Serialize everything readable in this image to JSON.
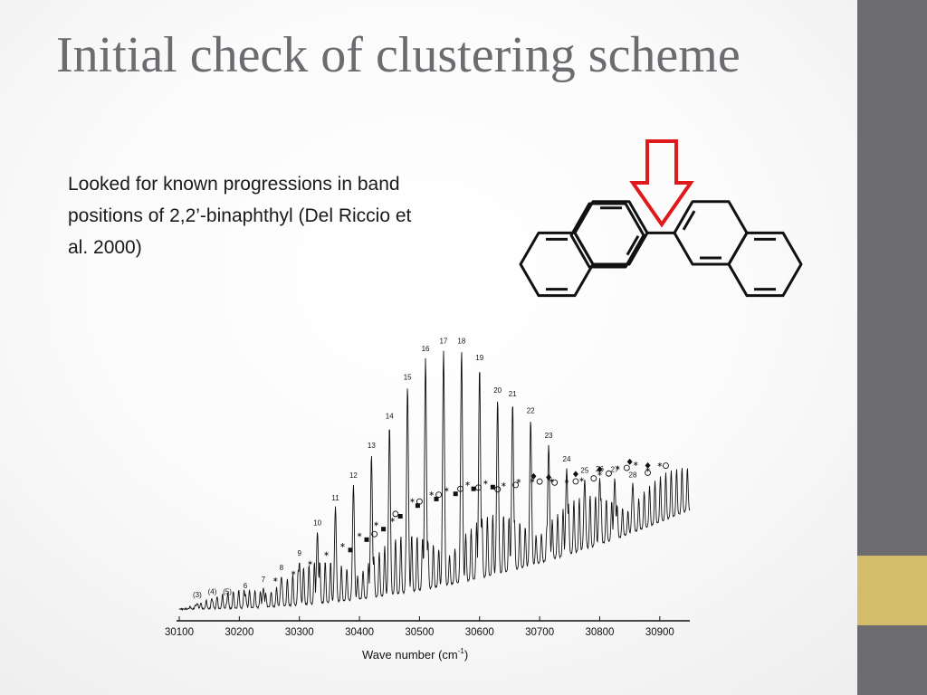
{
  "slide": {
    "title": "Initial check of clustering scheme",
    "body": "Looked for known progressions in band positions of 2,2’-binaphthyl (Del Riccio et al. 2000)",
    "colors": {
      "title": "#6b6b70",
      "sidebar": "#6c6b70",
      "accent": "#d4bd6a",
      "arrow": "#e0191c"
    }
  },
  "figure": {
    "molecule": {
      "arrow_icon": "down-arrow-icon"
    },
    "xlabel": "Wave number",
    "xlabel_unit": "(cm",
    "xlabel_exp": "-1",
    "xlabel_close": ")"
  },
  "chart_data": {
    "type": "line",
    "title": "",
    "xlabel": "Wave number (cm-1)",
    "ylabel": "",
    "xlim": [
      30100,
      30950
    ],
    "x_ticks": [
      "30100",
      "30200",
      "30300",
      "30400",
      "30500",
      "30600",
      "30700",
      "30800",
      "30900"
    ],
    "grid": false,
    "series": [
      {
        "peaks": [
          {
            "x": 30130,
            "h": 0.02,
            "label": "(3)"
          },
          {
            "x": 30155,
            "h": 0.03,
            "label": "(4)"
          },
          {
            "x": 30180,
            "h": 0.03,
            "label": "(5)"
          },
          {
            "x": 30210,
            "h": 0.05,
            "label": "6"
          },
          {
            "x": 30240,
            "h": 0.07,
            "label": "7"
          },
          {
            "x": 30270,
            "h": 0.11,
            "label": "8"
          },
          {
            "x": 30300,
            "h": 0.16,
            "label": "9"
          },
          {
            "x": 30330,
            "h": 0.27,
            "label": "10"
          },
          {
            "x": 30360,
            "h": 0.36,
            "label": "11"
          },
          {
            "x": 30390,
            "h": 0.44,
            "label": "12"
          },
          {
            "x": 30420,
            "h": 0.55,
            "label": "13"
          },
          {
            "x": 30450,
            "h": 0.66,
            "label": "14"
          },
          {
            "x": 30480,
            "h": 0.81,
            "label": "15"
          },
          {
            "x": 30510,
            "h": 0.92,
            "label": "16"
          },
          {
            "x": 30540,
            "h": 0.95,
            "label": "17"
          },
          {
            "x": 30570,
            "h": 0.95,
            "label": "18"
          },
          {
            "x": 30600,
            "h": 0.88,
            "label": "19"
          },
          {
            "x": 30630,
            "h": 0.74,
            "label": "20"
          },
          {
            "x": 30655,
            "h": 0.72,
            "label": "21"
          },
          {
            "x": 30685,
            "h": 0.64,
            "label": "22"
          },
          {
            "x": 30715,
            "h": 0.52,
            "label": "23"
          },
          {
            "x": 30745,
            "h": 0.4,
            "label": "24"
          },
          {
            "x": 30775,
            "h": 0.33,
            "label": "25"
          },
          {
            "x": 30800,
            "h": 0.32,
            "label": "26"
          },
          {
            "x": 30825,
            "h": 0.3,
            "label": "27"
          },
          {
            "x": 30855,
            "h": 0.25,
            "label": "28"
          }
        ],
        "markers": {
          "asterisk": [
            30260,
            30290,
            30318,
            30345,
            30372,
            30400,
            30428,
            30455,
            30488,
            30520,
            30545,
            30580,
            30610,
            30640,
            30665,
            30688,
            30720,
            30745,
            30770,
            30800,
            30830,
            30860,
            30880,
            30900
          ],
          "filled_square": [
            30385,
            30412,
            30440,
            30468,
            30497,
            30528,
            30560,
            30590,
            30622
          ],
          "open_circle": [
            30425,
            30460,
            30500,
            30532,
            30568,
            30598,
            30630,
            30660,
            30700,
            30725,
            30760,
            30790,
            30815,
            30845,
            30880,
            30910
          ],
          "filled_diamond": [
            30690,
            30715,
            30760,
            30800,
            30850,
            30880
          ]
        }
      }
    ]
  }
}
